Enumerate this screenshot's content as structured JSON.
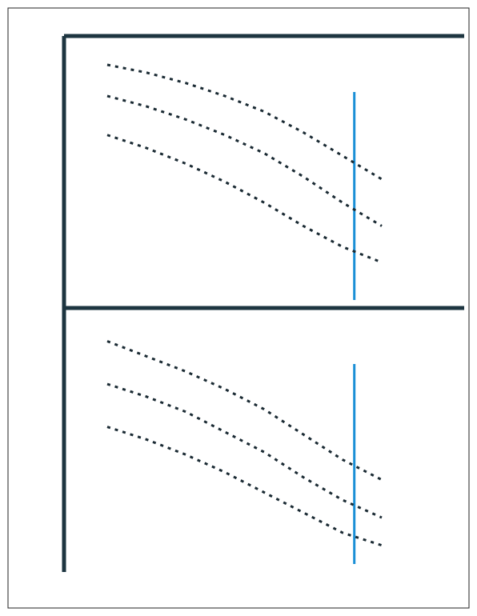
{
  "chart_data": [
    {
      "type": "line",
      "x": [
        1,
        2,
        3,
        4,
        5,
        6,
        7,
        8
      ],
      "xlim": [
        0,
        10
      ],
      "ylim": [
        0,
        10
      ],
      "vline": 7.3,
      "vline_color": "#1a8fd6",
      "series": [
        {
          "color": "#1a2a33",
          "values": [
            9.2,
            8.9,
            8.5,
            8.0,
            7.4,
            6.6,
            5.7,
            4.8
          ]
        },
        {
          "color": "#1a2a33",
          "values": [
            8.0,
            7.6,
            7.1,
            6.5,
            5.8,
            4.9,
            3.9,
            3.0
          ]
        },
        {
          "color": "#1a2a33",
          "values": [
            6.5,
            6.0,
            5.4,
            4.7,
            3.9,
            3.0,
            2.2,
            1.6
          ]
        }
      ]
    },
    {
      "type": "line",
      "x": [
        1,
        2,
        3,
        4,
        5,
        6,
        7,
        8
      ],
      "xlim": [
        0,
        10
      ],
      "ylim": [
        0,
        10
      ],
      "vline": 7.3,
      "vline_color": "#1a8fd6",
      "series": [
        {
          "color": "#1a2a33",
          "values": [
            9.0,
            8.4,
            7.8,
            7.1,
            6.3,
            5.3,
            4.3,
            3.5
          ]
        },
        {
          "color": "#1a2a33",
          "values": [
            7.3,
            6.8,
            6.2,
            5.4,
            4.6,
            3.6,
            2.7,
            2.0
          ]
        },
        {
          "color": "#1a2a33",
          "values": [
            5.6,
            5.1,
            4.5,
            3.8,
            3.0,
            2.2,
            1.4,
            0.9
          ]
        }
      ]
    }
  ]
}
